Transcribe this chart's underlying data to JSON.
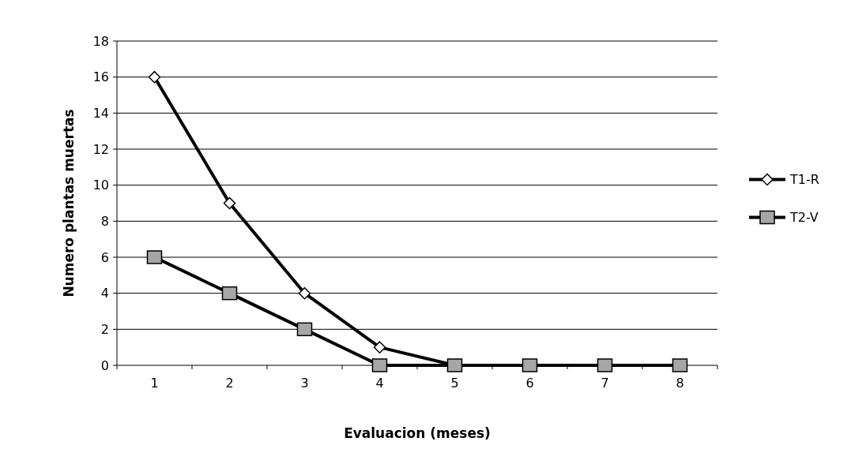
{
  "chart_data": {
    "type": "line",
    "xlabel": "Evaluacion (meses)",
    "ylabel": "Numero plantas muertas",
    "categories": [
      "1",
      "2",
      "3",
      "4",
      "5",
      "6",
      "7",
      "8"
    ],
    "ylim": [
      0,
      18
    ],
    "yticks": [
      0,
      2,
      4,
      6,
      8,
      10,
      12,
      14,
      16,
      18
    ],
    "grid": "y",
    "legend": "right",
    "line_style": "solid",
    "series": [
      {
        "name": "T1-R",
        "color": "#000000",
        "marker": "diamond",
        "values": [
          16,
          9,
          4,
          1,
          0,
          0,
          0,
          0
        ]
      },
      {
        "name": "T2-V",
        "color": "#000000",
        "marker": "square",
        "values": [
          6,
          4,
          2,
          0,
          0,
          0,
          0,
          0
        ]
      }
    ]
  }
}
